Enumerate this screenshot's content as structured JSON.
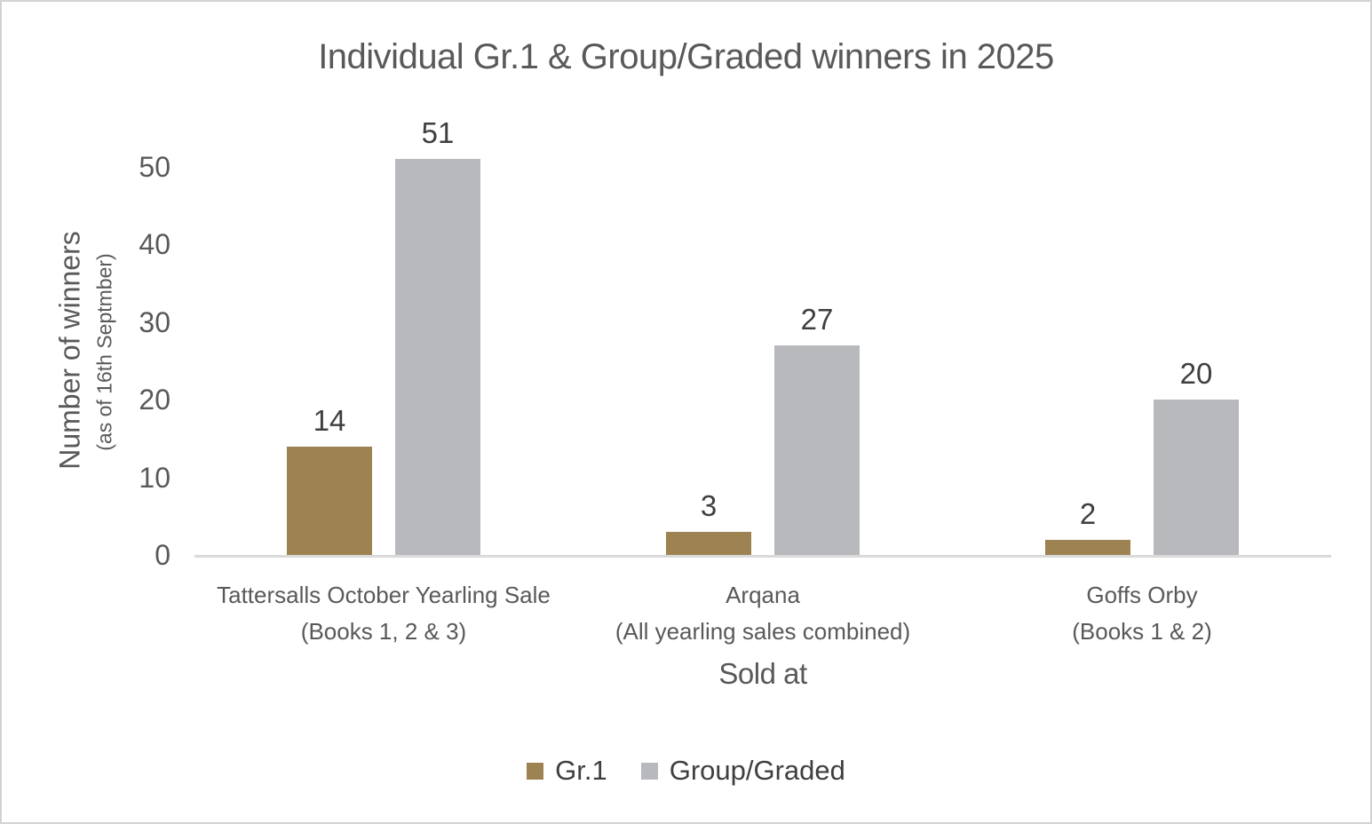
{
  "chart_data": {
    "type": "bar",
    "title": "Individual Gr.1 & Group/Graded winners in 2025",
    "xlabel": "Sold at",
    "ylabel": "Number of winners",
    "ylabel_note": "(as of 16th Septmber)",
    "categories": [
      {
        "name": "Tattersalls October Yearling Sale",
        "sub": "(Books 1, 2 & 3)"
      },
      {
        "name": "Arqana",
        "sub": "(All yearling sales combined)"
      },
      {
        "name": "Goffs Orby",
        "sub": "(Books 1 & 2)"
      }
    ],
    "series": [
      {
        "name": "Gr.1",
        "color": "#9c8351",
        "values": [
          14,
          3,
          2
        ]
      },
      {
        "name": "Group/Graded",
        "color": "#b7b9bc",
        "values": [
          51,
          27,
          20
        ]
      }
    ],
    "yticks": [
      0,
      10,
      20,
      30,
      40,
      50
    ],
    "ylim": [
      0,
      50
    ],
    "grid": false,
    "legend_position": "bottom"
  },
  "colors": {
    "title_text": "#595959",
    "axis_text": "#595959",
    "data_label_text": "#3f3f3f",
    "axis_line": "#dadada",
    "frame_border": "#d3d3d3",
    "background": "#ffffff"
  }
}
